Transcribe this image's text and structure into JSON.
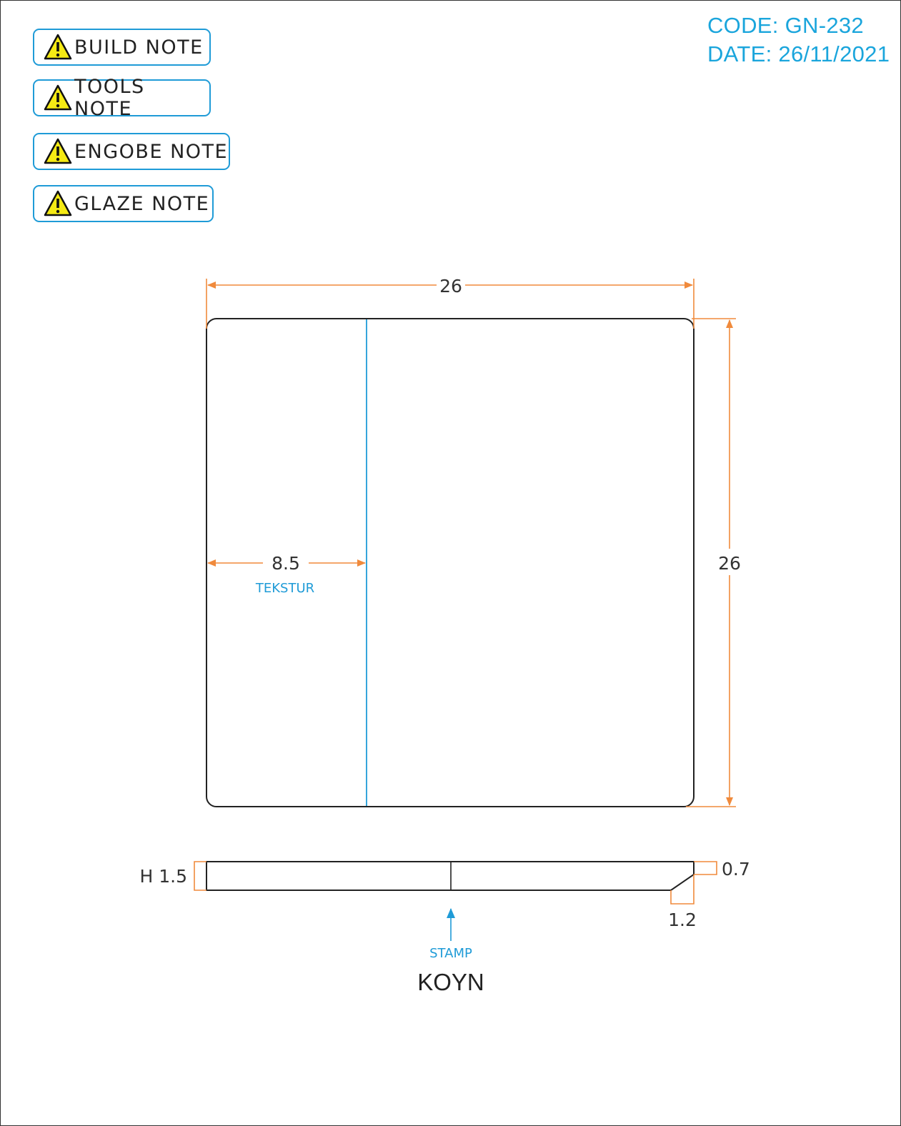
{
  "header": {
    "code": "CODE: GN-232",
    "date": "DATE: 26/11/2021"
  },
  "notes": [
    {
      "label": "BUILD NOTE",
      "icon": "warning-icon"
    },
    {
      "label": "TOOLS NOTE",
      "icon": "warning-icon"
    },
    {
      "label": "ENGOBE NOTE",
      "icon": "warning-icon"
    },
    {
      "label": "GLAZE NOTE",
      "icon": "warning-icon"
    }
  ],
  "plan_view": {
    "width": "26",
    "height": "26",
    "texture_width": "8.5",
    "texture_label": "TEKSTUR"
  },
  "side_view": {
    "height": "H 1.5",
    "edge_height": "0.7",
    "chamfer_width": "1.2",
    "stamp_label": "STAMP",
    "stamp_text": "KOYN"
  },
  "colors": {
    "accent": "#1f9bd7",
    "dimension": "#f08a3c",
    "warning_fill": "#f5ea14",
    "outline": "#222222"
  }
}
